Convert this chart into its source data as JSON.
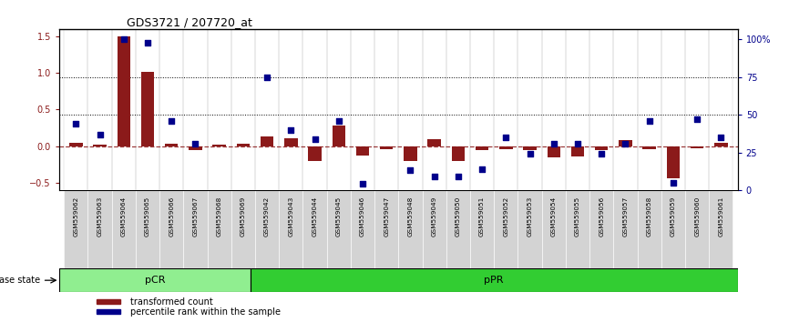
{
  "title": "GDS3721 / 207720_at",
  "samples": [
    "GSM559062",
    "GSM559063",
    "GSM559064",
    "GSM559065",
    "GSM559066",
    "GSM559067",
    "GSM559068",
    "GSM559069",
    "GSM559042",
    "GSM559043",
    "GSM559044",
    "GSM559045",
    "GSM559046",
    "GSM559047",
    "GSM559048",
    "GSM559049",
    "GSM559050",
    "GSM559051",
    "GSM559052",
    "GSM559053",
    "GSM559054",
    "GSM559055",
    "GSM559056",
    "GSM559057",
    "GSM559058",
    "GSM559059",
    "GSM559060",
    "GSM559061"
  ],
  "transformed_count": [
    0.04,
    0.02,
    1.5,
    1.02,
    0.03,
    -0.05,
    0.02,
    0.03,
    0.13,
    0.11,
    -0.2,
    0.28,
    -0.13,
    -0.04,
    -0.2,
    0.1,
    -0.21,
    -0.05,
    -0.04,
    -0.05,
    -0.15,
    -0.14,
    -0.05,
    0.08,
    -0.04,
    -0.44,
    -0.03,
    0.04
  ],
  "percentile_rank": [
    44,
    37,
    100,
    98,
    46,
    31,
    null,
    null,
    75,
    40,
    34,
    46,
    4,
    null,
    13,
    9,
    9,
    14,
    35,
    24,
    31,
    31,
    24,
    31,
    46,
    5,
    47,
    35
  ],
  "pCR_count": 8,
  "pCR_label": "pCR",
  "pPR_label": "pPR",
  "disease_state_label": "disease state",
  "bar_color": "#8B1A1A",
  "dot_color": "#00008B",
  "ylim_left": [
    -0.6,
    1.6
  ],
  "ylim_right": [
    0,
    107
  ],
  "yticks_left": [
    -0.5,
    0.0,
    0.5,
    1.0,
    1.5
  ],
  "yticks_right": [
    0,
    25,
    50,
    75,
    100
  ],
  "ytick_labels_right": [
    "0",
    "25",
    "50",
    "75",
    "100%"
  ],
  "hline_50": 0.5,
  "hline_75": 1.0,
  "pCR_color_light": "#90EE90",
  "pPR_color": "#32CD32",
  "xtick_bg": "#d3d3d3"
}
